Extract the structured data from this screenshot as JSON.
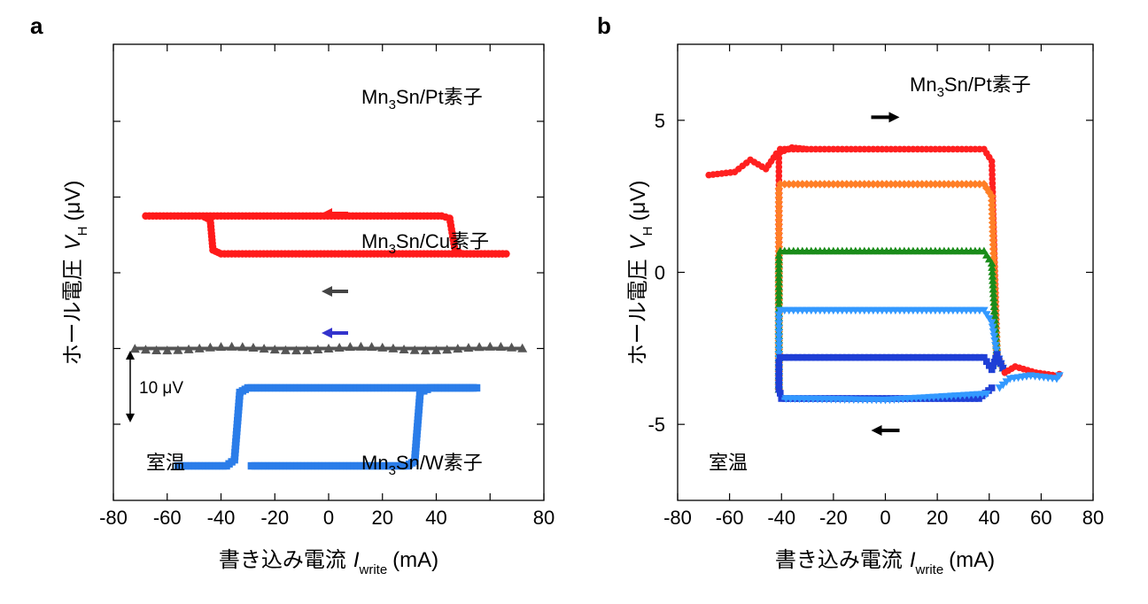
{
  "chart_data": [
    {
      "panel": "a",
      "type": "line",
      "xlabel": "書き込み電流",
      "xlabel_symbol": "I",
      "xlabel_subscript": "write",
      "xlabel_unit": "(mA)",
      "ylabel": "ホール電圧",
      "ylabel_symbol": "V",
      "ylabel_subscript": "H",
      "ylabel_unit": "(μV)",
      "xlim": [
        -80,
        80
      ],
      "x_ticks": [
        "-80",
        "-60",
        "-40",
        "-20",
        "0",
        "20",
        "40",
        "80"
      ],
      "x_ticks_full": [
        "-80",
        "-60",
        "-40",
        "-20",
        "0",
        "20",
        "40",
        "60",
        "80"
      ],
      "scale_bar": "10 μV",
      "scale_bar_value": 10,
      "condition": "室温",
      "series": [
        {
          "label": "Mn₃Sn/Pt素子",
          "label_main": "Mn",
          "label_sub": "3",
          "label_rest": "Sn/Pt素子",
          "color": "#ff1a1a",
          "marker": "circle",
          "offset": 0,
          "high": 7.5,
          "low": 2.5,
          "x_min": -68,
          "x_max": 66,
          "switch_up": 46,
          "switch_down": -42,
          "arrow_direction": "left",
          "arrow_color": "#ff1a1a"
        },
        {
          "label": "Mn₃Sn/Cu素子",
          "label_main": "Mn",
          "label_sub": "3",
          "label_rest": "Sn/Cu素子",
          "color": "#555555",
          "marker": "triangle",
          "offset": -10,
          "high": 0,
          "low": 0,
          "x_min": -72,
          "x_max": 72,
          "arrow_direction": "left",
          "arrow_color": "#444444"
        },
        {
          "label": "Mn₃Sn/W素子",
          "label_main": "Mn",
          "label_sub": "3",
          "label_rest": "Sn/W素子",
          "color": "#2b7de9",
          "marker": "square",
          "offset": -20,
          "high": 4.8,
          "low": -5.5,
          "x_min": -56,
          "x_max": 55,
          "switch_up": -34,
          "switch_down": 32,
          "arrow_direction": "left",
          "arrow_color": "#3333cc"
        }
      ]
    },
    {
      "panel": "b",
      "type": "line",
      "xlabel": "書き込み電流",
      "xlabel_symbol": "I",
      "xlabel_subscript": "write",
      "xlabel_unit": "(mA)",
      "ylabel": "ホール電圧",
      "ylabel_symbol": "V",
      "ylabel_subscript": "H",
      "ylabel_unit": "(μV)",
      "xlim": [
        -80,
        80
      ],
      "ylim": [
        -7.5,
        7.5
      ],
      "x_ticks": [
        "-80",
        "-60",
        "-40",
        "-20",
        "0",
        "20",
        "40",
        "60",
        "80"
      ],
      "y_ticks": [
        "5",
        "0",
        "-5"
      ],
      "y_tick_values": [
        5,
        0,
        -5
      ],
      "series_label": "Mn₃Sn/Pt素子",
      "series_label_main": "Mn",
      "series_label_sub": "3",
      "series_label_rest": "Sn/Pt素子",
      "condition": "室温",
      "arrows": [
        {
          "direction": "right",
          "x": 0,
          "y": 5.1
        },
        {
          "direction": "left",
          "x": 0,
          "y": -5.2
        }
      ],
      "common_low": -3.3,
      "common_start": 3.2,
      "minor_loops": [
        {
          "color": "#ff2020",
          "marker": "circle",
          "top": 4.05
        },
        {
          "color": "#ff7f27",
          "marker": "diamond",
          "top": 2.9
        },
        {
          "color": "#1a8c1a",
          "marker": "triangle",
          "top": 0.7
        },
        {
          "color": "#3399ff",
          "marker": "triangle-down",
          "top": -1.25
        },
        {
          "color": "#1f3fd6",
          "marker": "square",
          "top": -2.8
        }
      ],
      "bottom_branch": -4.15,
      "switch_positive": 42,
      "switch_negative": -41
    }
  ]
}
